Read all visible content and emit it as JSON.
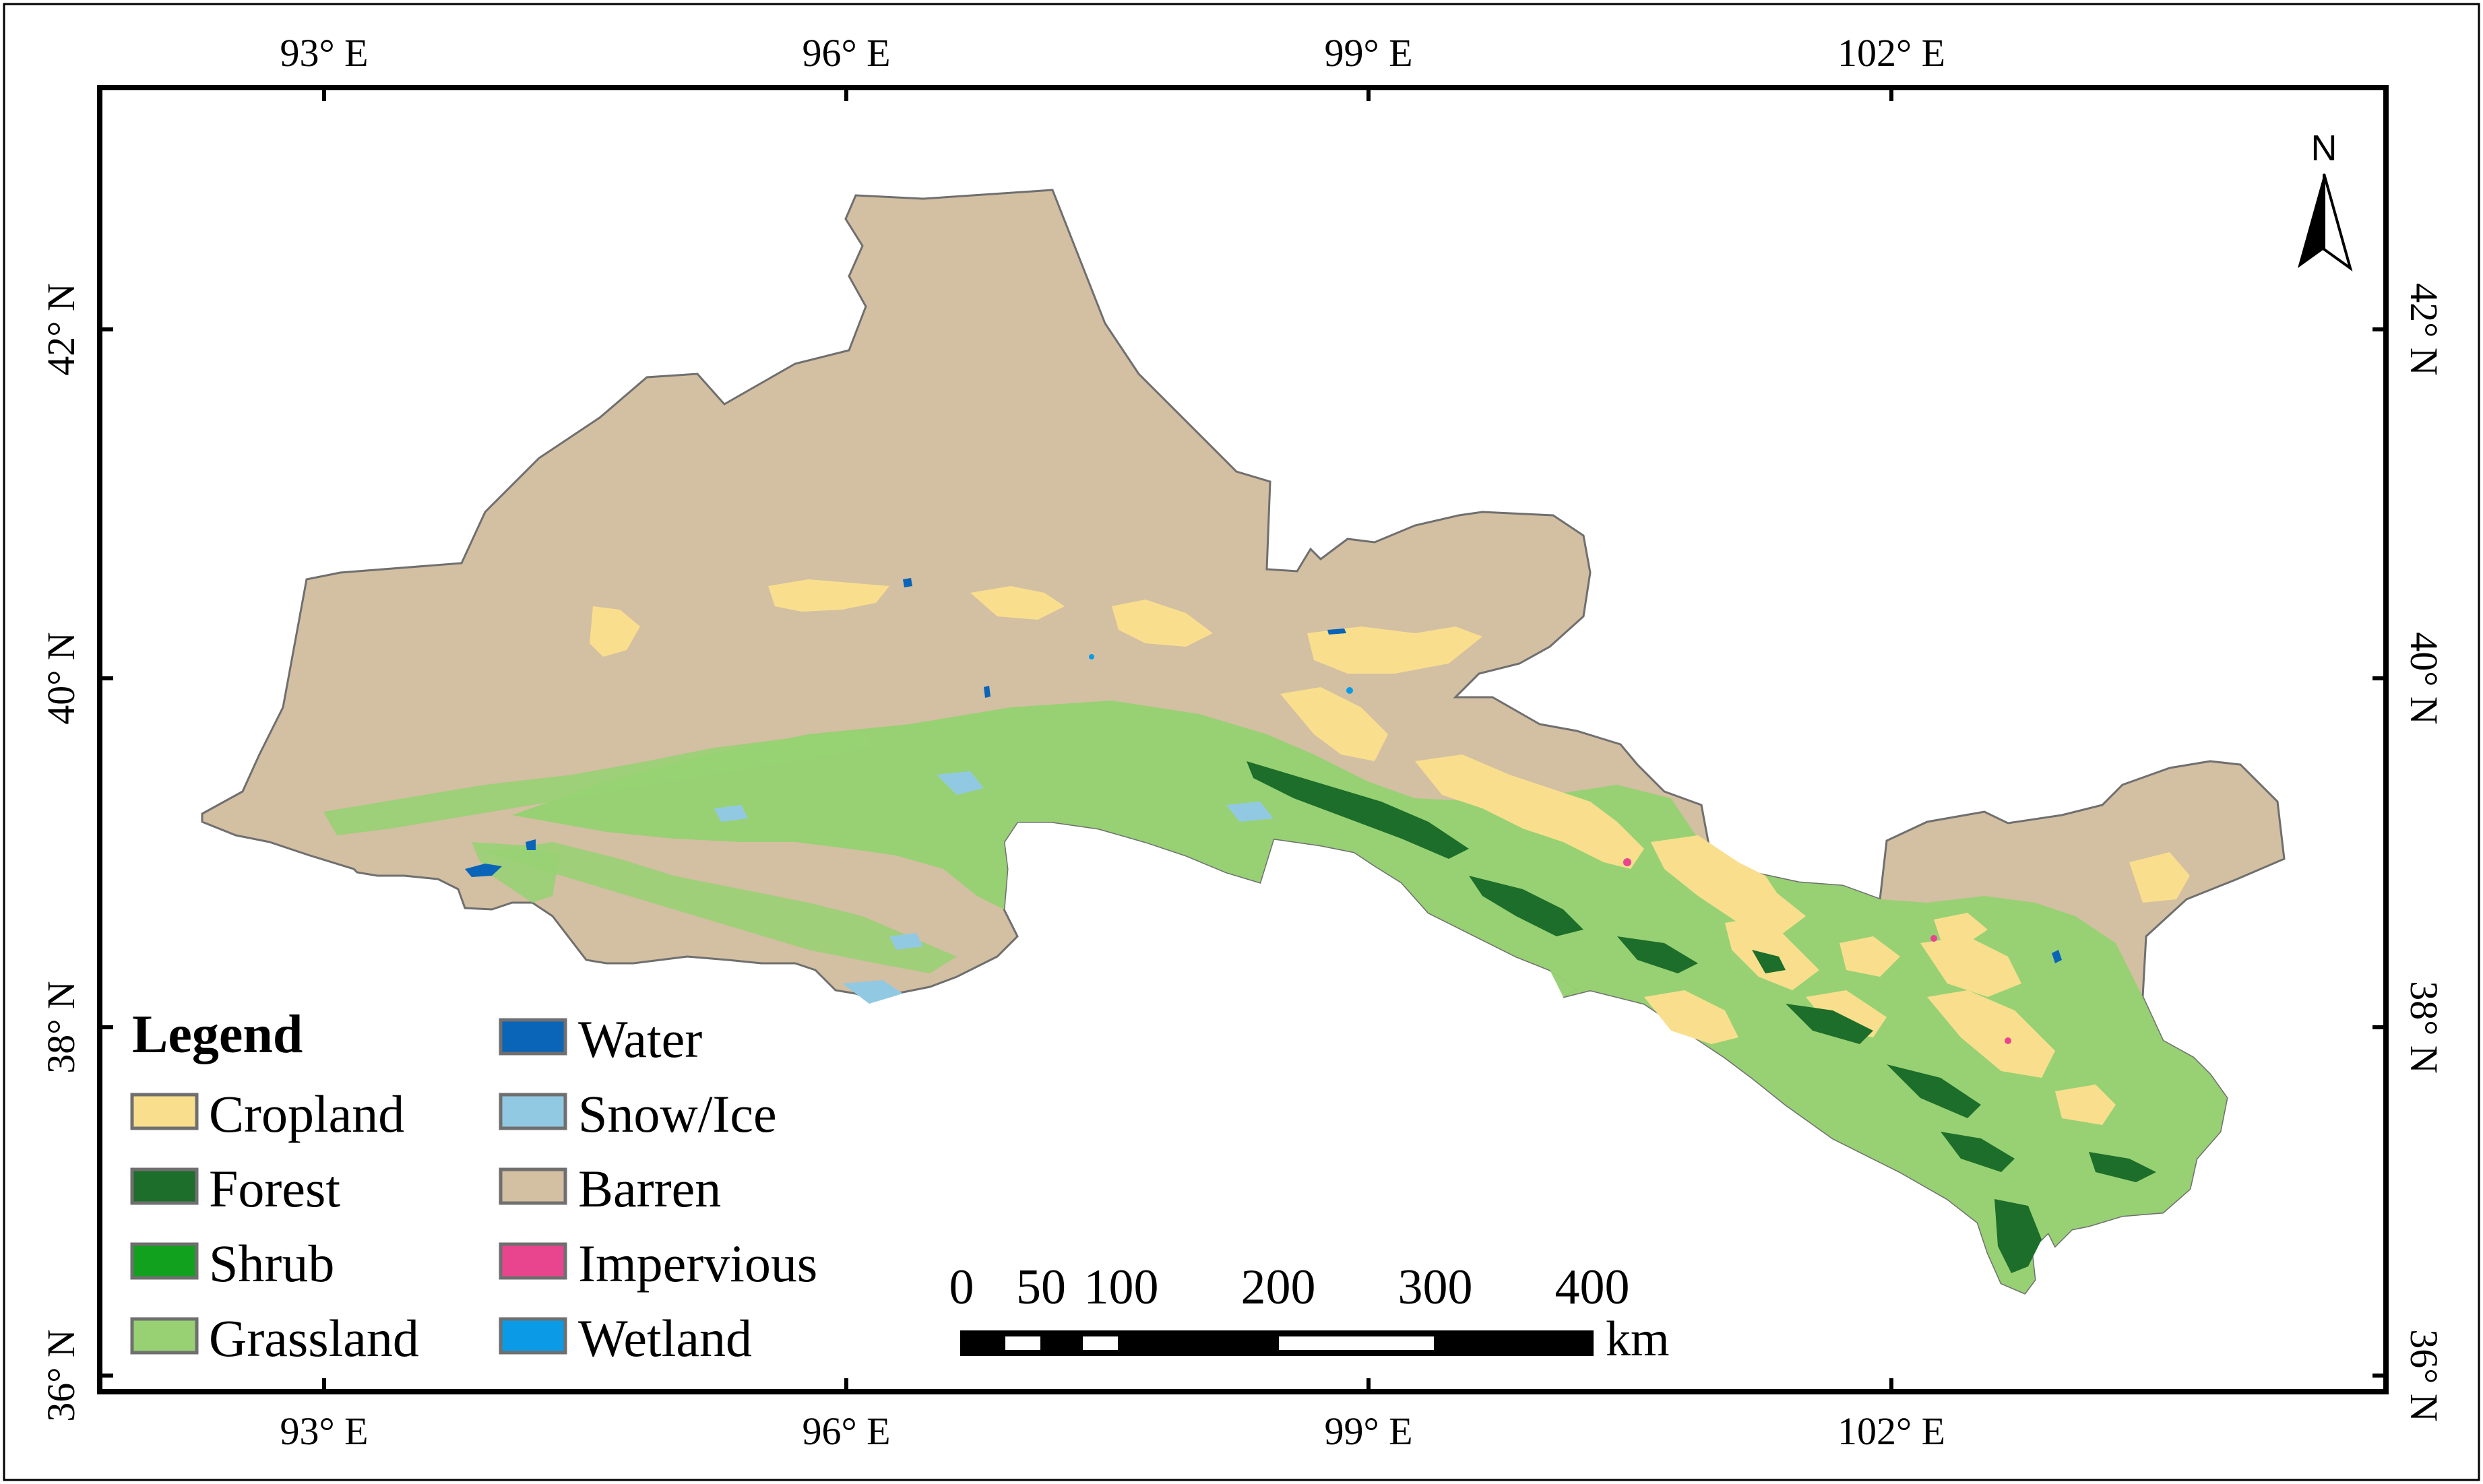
{
  "map": {
    "longitude_ticks": [
      "93° E",
      "96° E",
      "99° E",
      "102° E"
    ],
    "latitude_ticks": [
      "36° N",
      "38° N",
      "40° N",
      "42° N"
    ]
  },
  "north_arrow": {
    "label": "N"
  },
  "legend": {
    "title": "Legend",
    "items": [
      {
        "label": "Cropland",
        "color": "#f9df8d"
      },
      {
        "label": "Forest",
        "color": "#1c6e2a"
      },
      {
        "label": "Shrub",
        "color": "#12a01f"
      },
      {
        "label": "Grassland",
        "color": "#97d173"
      },
      {
        "label": "Water",
        "color": "#0a64b8"
      },
      {
        "label": "Snow/Ice",
        "color": "#92c9e2"
      },
      {
        "label": "Barren",
        "color": "#d3bfa2"
      },
      {
        "label": "Impervious",
        "color": "#e9458f"
      },
      {
        "label": "Wetland",
        "color": "#0b9be6"
      }
    ]
  },
  "scale_bar": {
    "labels": [
      "0",
      "50",
      "100",
      "200",
      "300",
      "400"
    ],
    "unit": "km"
  }
}
